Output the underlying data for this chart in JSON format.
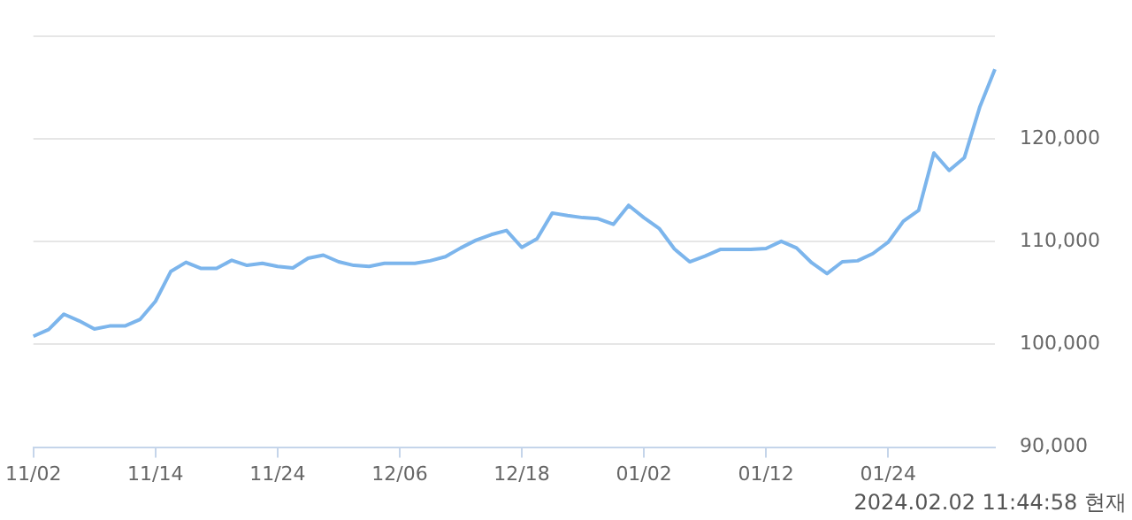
{
  "chart_data": {
    "type": "line",
    "categories": [
      "11/02",
      null,
      null,
      null,
      null,
      null,
      null,
      null,
      "11/14",
      null,
      null,
      null,
      null,
      null,
      null,
      null,
      "11/24",
      null,
      null,
      null,
      null,
      null,
      null,
      null,
      "12/06",
      null,
      null,
      null,
      null,
      null,
      null,
      null,
      "12/18",
      null,
      null,
      null,
      null,
      null,
      null,
      null,
      "01/02",
      null,
      null,
      null,
      null,
      null,
      null,
      null,
      "01/12",
      null,
      null,
      null,
      null,
      null,
      null,
      null,
      "01/24",
      null,
      null,
      null,
      null,
      null,
      null,
      null
    ],
    "series": [
      {
        "color": "#7cb5ec",
        "values": [
          100800,
          101450,
          102950,
          102300,
          101500,
          101800,
          101800,
          102450,
          104200,
          107100,
          108000,
          107400,
          107400,
          108200,
          107700,
          107900,
          107600,
          107450,
          108400,
          108700,
          108050,
          107700,
          107600,
          107900,
          107900,
          107900,
          108150,
          108550,
          109400,
          110150,
          110700,
          111100,
          109450,
          110300,
          112800,
          112550,
          112350,
          112250,
          111700,
          113550,
          112350,
          111300,
          109300,
          108050,
          108600,
          109250,
          109250,
          109250,
          109350,
          110050,
          109400,
          107950,
          106900,
          108050,
          108150,
          108850,
          109950,
          112000,
          113050,
          118650,
          116950,
          118200,
          123100,
          126800
        ]
      }
    ],
    "ylim": [
      90000,
      130000
    ],
    "yticks": [
      {
        "value": 90000,
        "label": "90,000"
      },
      {
        "value": 100000,
        "label": "100,000"
      },
      {
        "value": 110000,
        "label": "110,000"
      },
      {
        "value": 120000,
        "label": "120,000"
      },
      {
        "value": 130000,
        "label": null
      }
    ],
    "grid": "y",
    "legend": false,
    "marker": "none",
    "line_style": "solid",
    "annotations": [
      "2024.02.02 11:44:58 현재"
    ]
  }
}
